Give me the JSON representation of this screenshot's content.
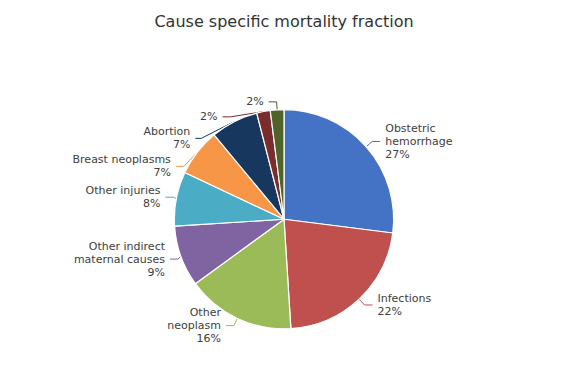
{
  "chart_data": {
    "type": "pie",
    "title": "Cause specific mortality fraction",
    "values": [
      27,
      22,
      16,
      9,
      8,
      7,
      7,
      2,
      2
    ],
    "value_labels": [
      "Obstetric\nhemorrhage\n27%",
      "Infections\n22%",
      "Other\nneoplasm\n16%",
      "Other indirect\nmaternal causes\n9%",
      "Other injuries\n8%",
      "Breast neoplasms\n7%",
      "Abortion\n7%",
      "2%",
      "2%"
    ],
    "colors": [
      "#4472C4",
      "#C0504D",
      "#9BBB59",
      "#8064A2",
      "#4BACC6",
      "#F79646",
      "#17375E",
      "#7B2C2C",
      "#4F6228"
    ]
  }
}
